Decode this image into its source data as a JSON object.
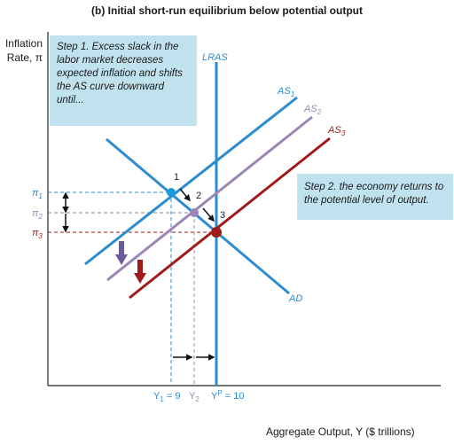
{
  "title": "(b) Initial short-run equilibrium below potential output",
  "y_axis_label_line1": "Inflation",
  "y_axis_label_line2": "Rate, π",
  "x_axis_label": "Aggregate Output, Y ($ trillions)",
  "step1_text": "Step 1. Excess slack in the labor market decreases expected inflation and shifts the AS curve downward until...",
  "step2_text": "Step 2. the economy returns to the potential level of output.",
  "curves": {
    "lras": "LRAS",
    "as1": "AS1",
    "as2": "AS2",
    "as3": "AS3",
    "ad": "AD"
  },
  "points": {
    "p1": "1",
    "p2": "2",
    "p3": "3"
  },
  "y_ticks": {
    "pi1": "π1",
    "pi2": "π2",
    "pi3": "π3"
  },
  "x_ticks": {
    "y1": "Y1 = 9",
    "y2": "Y2",
    "yp": "YP = 10"
  },
  "colors": {
    "as1": "#2b8cce",
    "as2": "#9b86b6",
    "as3": "#a01a1a",
    "ad": "#2b8cce",
    "lras": "#2b8cce",
    "callout_bg": "#bfe2ee"
  }
}
